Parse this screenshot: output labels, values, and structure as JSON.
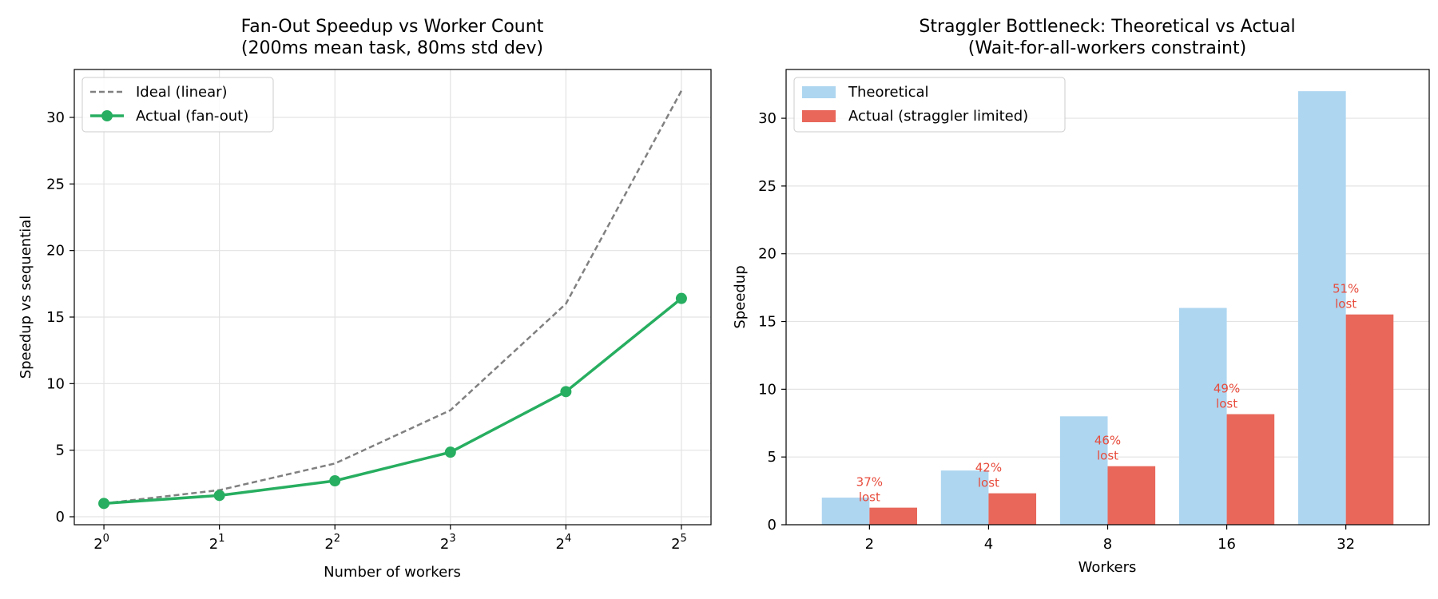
{
  "chart_data": [
    {
      "type": "line",
      "title": "Fan-Out Speedup vs Worker Count",
      "subtitle": "(200ms mean task, 80ms std dev)",
      "xlabel": "Number of workers",
      "ylabel": "Speedup vs sequential",
      "x_scale": "log2",
      "x": [
        1,
        2,
        4,
        8,
        16,
        32
      ],
      "x_tick_labels": [
        {
          "base": "2",
          "exp": "0"
        },
        {
          "base": "2",
          "exp": "1"
        },
        {
          "base": "2",
          "exp": "2"
        },
        {
          "base": "2",
          "exp": "3"
        },
        {
          "base": "2",
          "exp": "4"
        },
        {
          "base": "2",
          "exp": "5"
        }
      ],
      "y_ticks": [
        "0",
        "5",
        "10",
        "15",
        "20",
        "25",
        "30"
      ],
      "ylim": [
        -0.6,
        33.6
      ],
      "grid": true,
      "legend_position": "top-left",
      "series": [
        {
          "name": "Ideal (linear)",
          "values": [
            1,
            2,
            4,
            8,
            16,
            32
          ],
          "color": "#808080",
          "style": "dashed"
        },
        {
          "name": "Actual (fan-out)",
          "values": [
            1.0,
            1.6,
            2.7,
            4.85,
            9.4,
            16.4
          ],
          "color": "#27ae60",
          "style": "solid-markers"
        }
      ]
    },
    {
      "type": "bar",
      "title": "Straggler Bottleneck: Theoretical vs Actual",
      "subtitle": "(Wait-for-all-workers constraint)",
      "xlabel": "Workers",
      "ylabel": "Speedup",
      "categories": [
        "2",
        "4",
        "8",
        "16",
        "32"
      ],
      "y_ticks": [
        "0",
        "5",
        "10",
        "15",
        "20",
        "25",
        "30"
      ],
      "ylim": [
        0,
        33.6
      ],
      "grid": true,
      "legend_position": "top-left",
      "series": [
        {
          "name": "Theoretical",
          "values": [
            2,
            4,
            8,
            16,
            32
          ],
          "color": "#aed6f1"
        },
        {
          "name": "Actual (straggler limited)",
          "values": [
            1.26,
            2.32,
            4.32,
            8.16,
            15.52
          ],
          "color": "#e8675a"
        }
      ],
      "annotations": [
        {
          "line1": "37%",
          "line2": "lost"
        },
        {
          "line1": "42%",
          "line2": "lost"
        },
        {
          "line1": "46%",
          "line2": "lost"
        },
        {
          "line1": "49%",
          "line2": "lost"
        },
        {
          "line1": "51%",
          "line2": "lost"
        }
      ]
    }
  ]
}
